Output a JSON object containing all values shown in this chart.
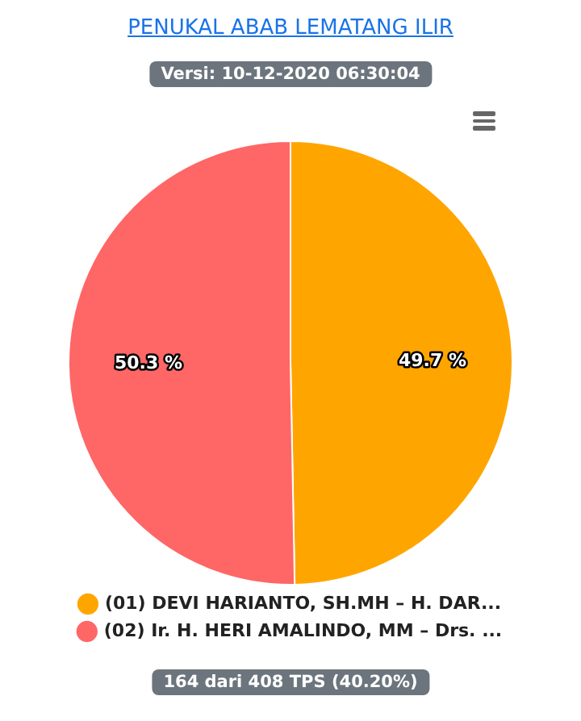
{
  "chart_data": {
    "type": "pie",
    "title": "PENUKAL ABAB LEMATANG ILIR",
    "subtitle": "Versi: 10-12-2020 06:30:04",
    "categories": [
      "(01) DEVI HARIANTO, SH.MH – H. DAR...",
      "(02) Ir. H. HERI AMALINDO, MM – Drs. ..."
    ],
    "values": [
      49.7,
      50.3
    ],
    "colors": [
      "#ffa500",
      "#ff6666"
    ],
    "value_labels": [
      "49.7 %",
      "50.3 %"
    ],
    "legend": "bottom",
    "annotations": [
      "164 dari 408 TPS (40.20%)"
    ]
  }
}
